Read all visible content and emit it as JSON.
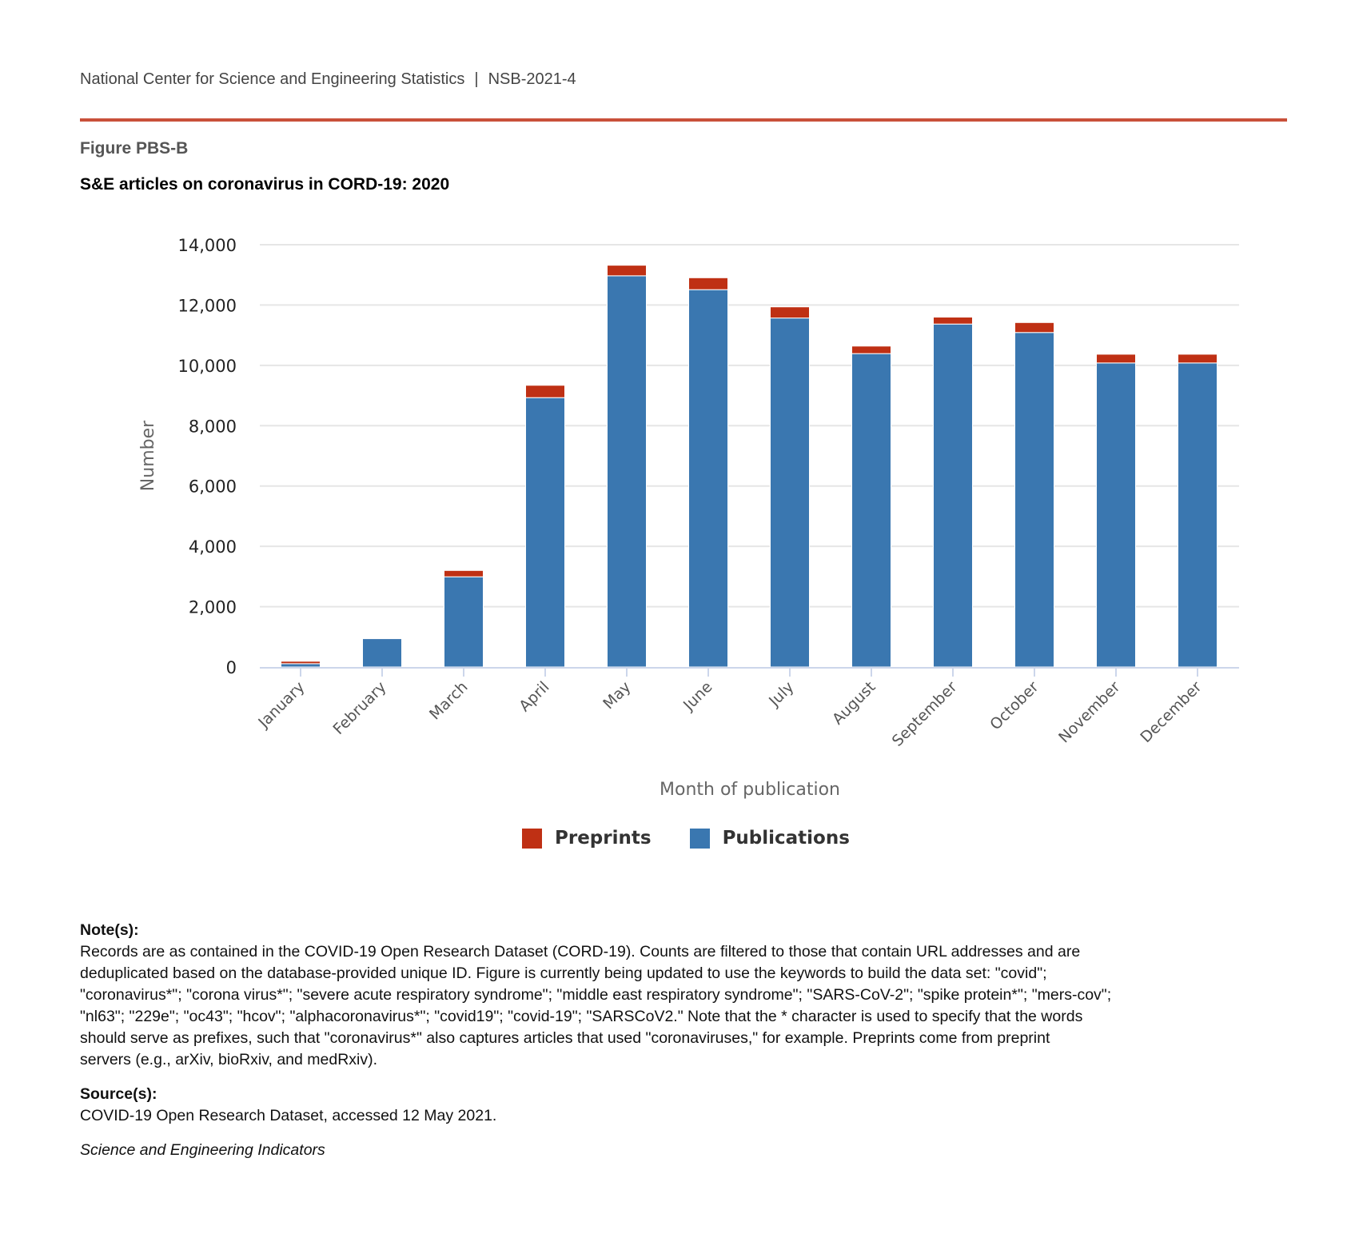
{
  "header": {
    "organization": "National Center for Science and Engineering Statistics",
    "separator": "|",
    "report_id": "NSB-2021-4"
  },
  "figure_label": "Figure PBS-B",
  "colors": {
    "rule": "#c9503a",
    "preprints": "#bf3014",
    "publications": "#3a77b0"
  },
  "chart_data": {
    "type": "bar",
    "stacked": true,
    "title": "S&E articles on coronavirus in CORD-19: 2020",
    "xlabel": "Month of publication",
    "ylabel": "Number",
    "ylim": [
      0,
      14000
    ],
    "yticks": [
      0,
      2000,
      4000,
      6000,
      8000,
      10000,
      12000,
      14000
    ],
    "ytick_labels": [
      "0",
      "2,000",
      "4,000",
      "6,000",
      "8,000",
      "10,000",
      "12,000",
      "14,000"
    ],
    "grid": true,
    "legend_position": "bottom",
    "categories": [
      "January",
      "February",
      "March",
      "April",
      "May",
      "June",
      "July",
      "August",
      "September",
      "October",
      "November",
      "December"
    ],
    "series": [
      {
        "name": "Publications",
        "color": "#3a77b0",
        "values": [
          110,
          940,
          2990,
          8930,
          12970,
          12510,
          11570,
          10390,
          11370,
          11090,
          10080,
          10080
        ]
      },
      {
        "name": "Preprints",
        "color": "#bf3014",
        "values": [
          80,
          10,
          210,
          410,
          350,
          395,
          370,
          250,
          230,
          330,
          290,
          290
        ]
      }
    ],
    "legend": [
      "Preprints",
      "Publications"
    ]
  },
  "notes": {
    "heading": "Note(s):",
    "lines": [
      "Records are as contained in the COVID-19 Open Research Dataset (CORD-19). Counts are filtered to those that contain URL addresses and are",
      "deduplicated based on the database-provided unique ID. Figure is currently being updated to use the keywords to build the data set: \"covid\";",
      "\"coronavirus*\"; \"corona virus*\"; \"severe acute respiratory syndrome\"; \"middle east respiratory syndrome\"; \"SARS-CoV-2\"; \"spike protein*\"; \"mers-cov\";",
      "\"nl63\"; \"229e\"; \"oc43\"; \"hcov\"; \"alphacoronavirus*\"; \"covid19\"; \"covid-19\"; \"SARSCoV2.\" Note that the * character is used to specify that the words",
      "should serve as prefixes, such that \"coronavirus*\" also captures articles that used \"coronaviruses,\" for example. Preprints come from preprint",
      "servers (e.g., arXiv, bioRxiv, and medRxiv)."
    ],
    "source_heading": "Source(s):",
    "source": "COVID-19 Open Research Dataset, accessed 12 May 2021.",
    "publication": "Science and Engineering Indicators"
  }
}
